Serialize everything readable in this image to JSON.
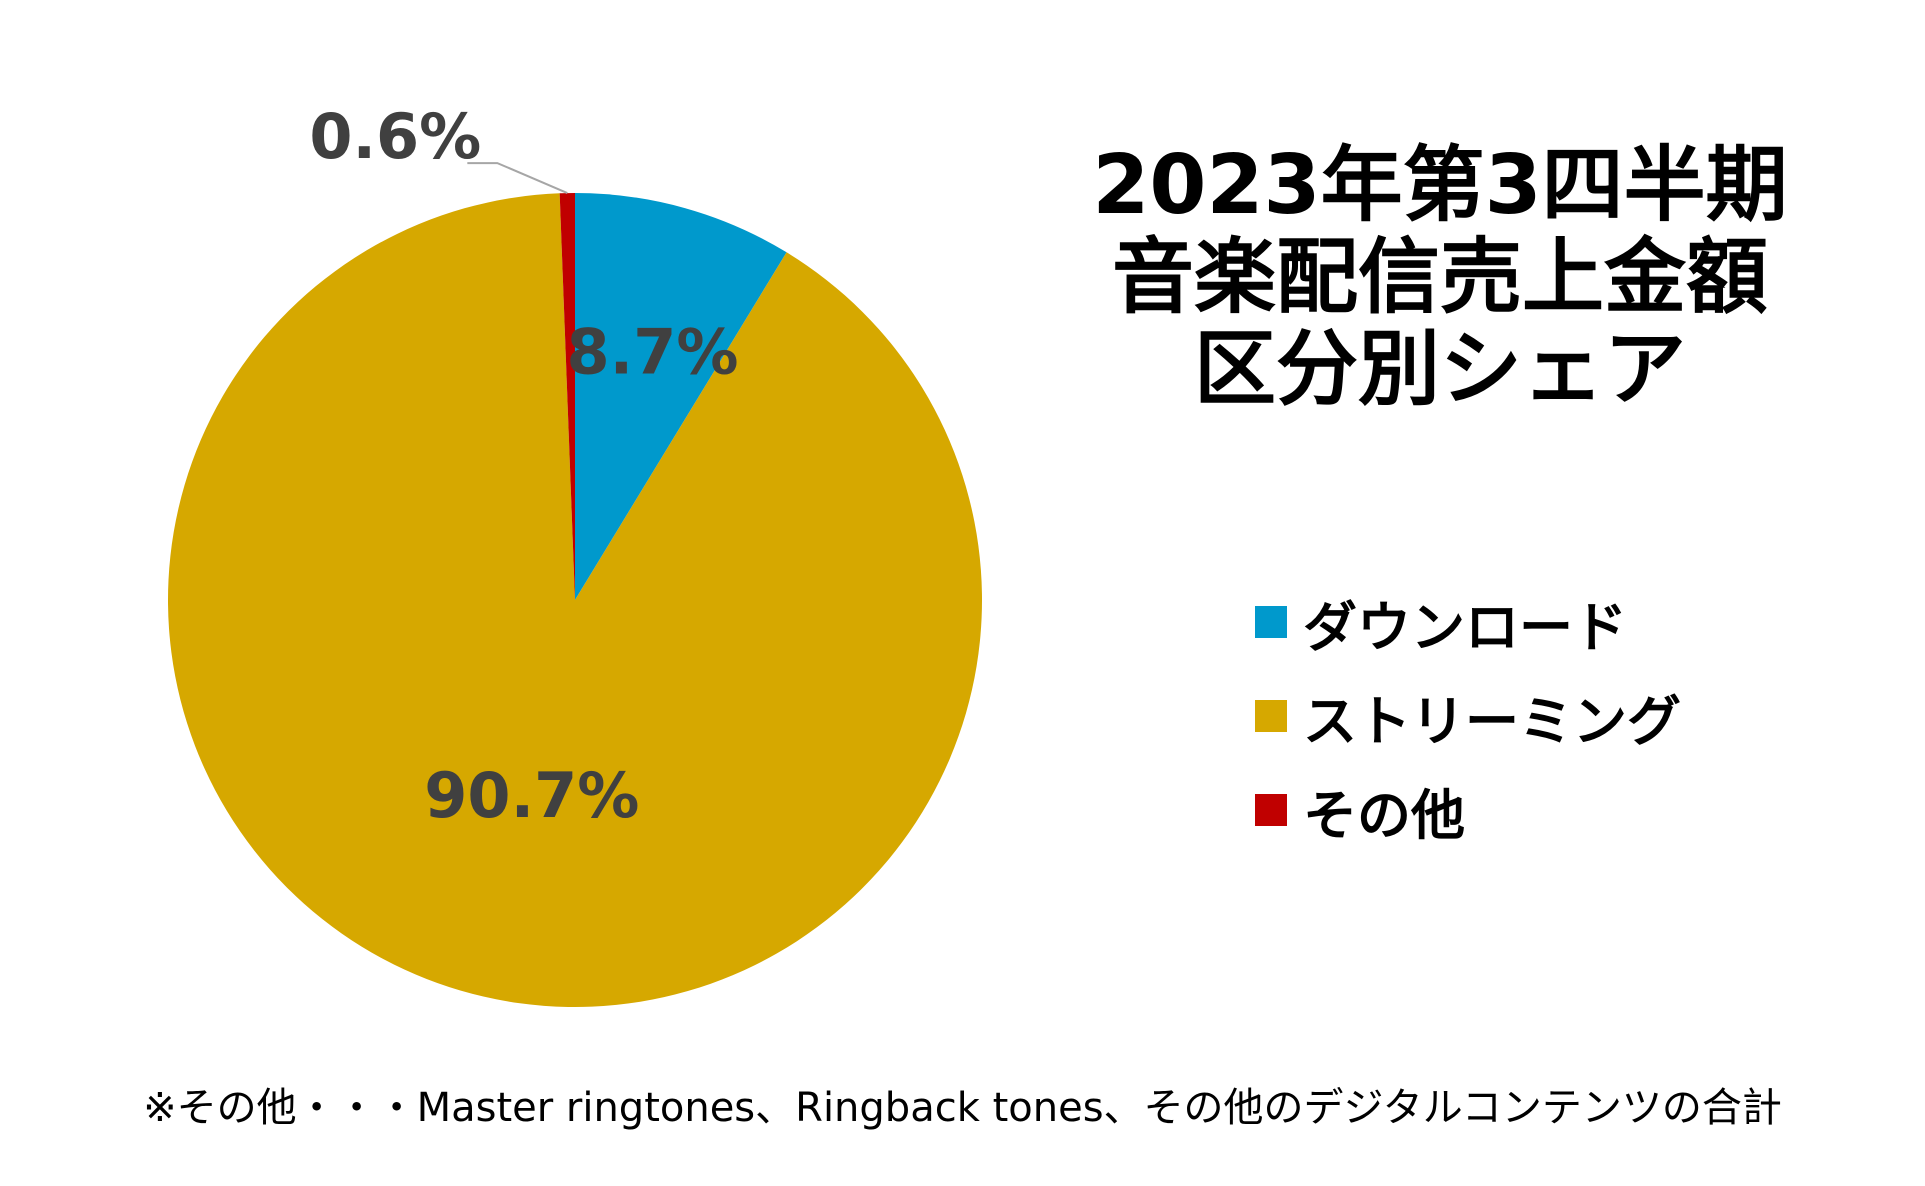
{
  "chart_data": {
    "type": "pie",
    "title_lines": [
      "2023年第3四半期",
      "音楽配信売上金額",
      "区分別シェア"
    ],
    "slices": [
      {
        "name": "ダウンロード",
        "value": 8.7,
        "label": "8.7%",
        "color": "#0099CC"
      },
      {
        "name": "ストリーミング",
        "value": 90.7,
        "label": "90.7%",
        "color": "#D6A800"
      },
      {
        "name": "その他",
        "value": 0.6,
        "label": "0.6%",
        "color": "#C00000"
      }
    ],
    "legend_position": "right",
    "data_label_color": "#404040",
    "footnote": "※その他・・・Master ringtones、Ringback tones、その他のデジタルコンテンツの合計"
  }
}
